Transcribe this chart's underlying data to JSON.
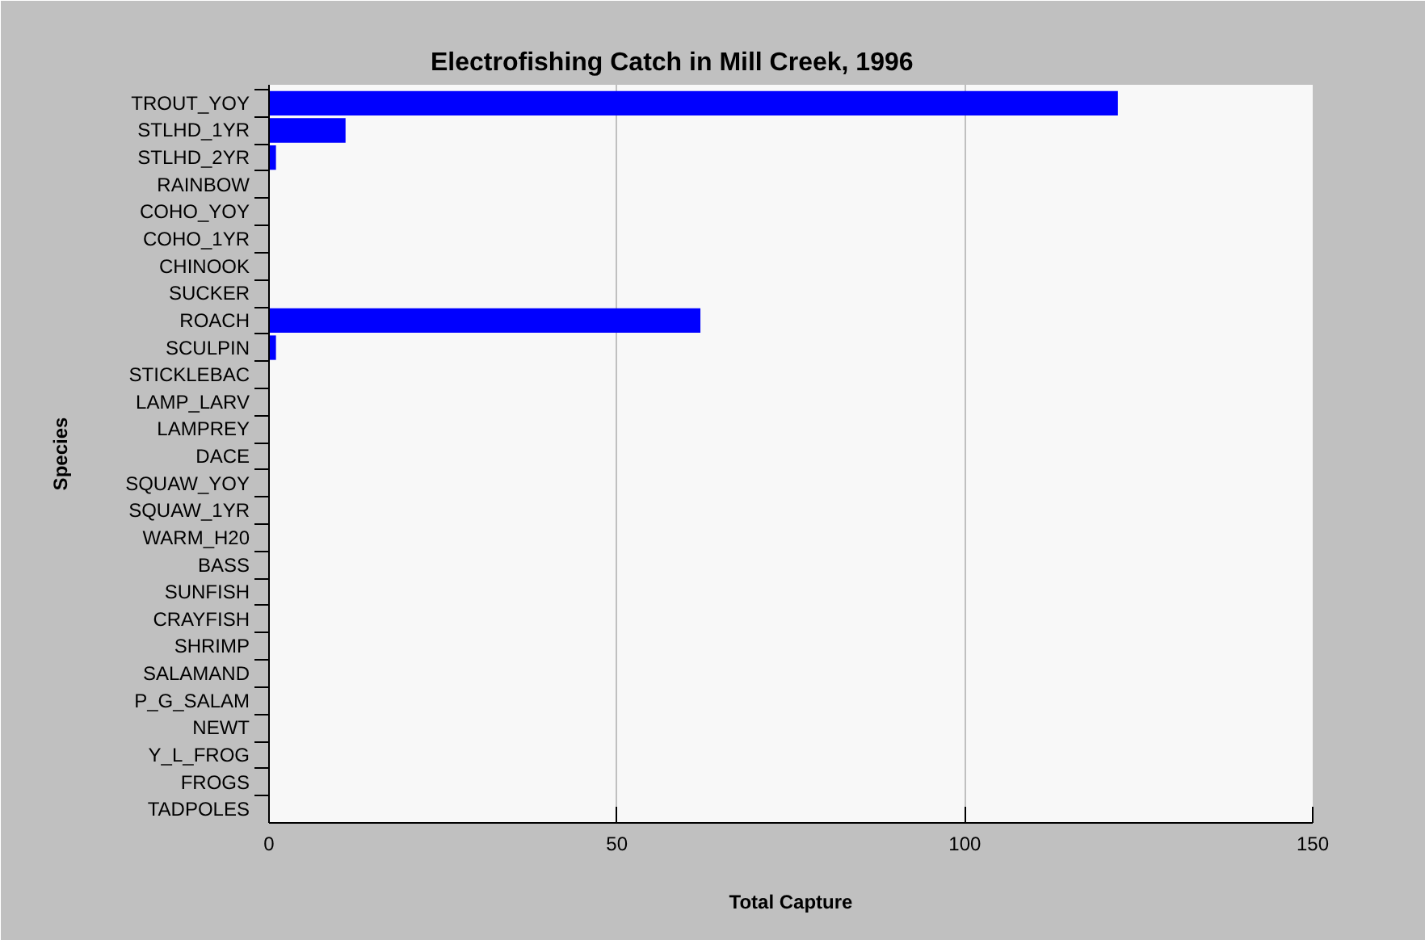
{
  "chart_data": {
    "type": "bar",
    "orientation": "horizontal",
    "title": "Electrofishing Catch in Mill Creek, 1996",
    "xlabel": "Total Capture",
    "ylabel": "Species",
    "categories": [
      "TROUT_YOY",
      "STLHD_1YR",
      "STLHD_2YR",
      "RAINBOW",
      "COHO_YOY",
      "COHO_1YR",
      "CHINOOK",
      "SUCKER",
      "ROACH",
      "SCULPIN",
      "STICKLEBAC",
      "LAMP_LARV",
      "LAMPREY",
      "DACE",
      "SQUAW_YOY",
      "SQUAW_1YR",
      "WARM_H20",
      "BASS",
      "SUNFISH",
      "CRAYFISH",
      "SHRIMP",
      "SALAMAND",
      "P_G_SALAM",
      "NEWT",
      "Y_L_FROG",
      "FROGS",
      "TADPOLES"
    ],
    "values": [
      122,
      11,
      1,
      0,
      0,
      0,
      0,
      0,
      62,
      1,
      0,
      0,
      0,
      0,
      0,
      0,
      0,
      0,
      0,
      0,
      0,
      0,
      0,
      0,
      0,
      0,
      0
    ],
    "color": "#0000ff",
    "xlim": [
      0,
      150
    ],
    "xticks": [
      0,
      50,
      100,
      150
    ],
    "grid": "x"
  }
}
